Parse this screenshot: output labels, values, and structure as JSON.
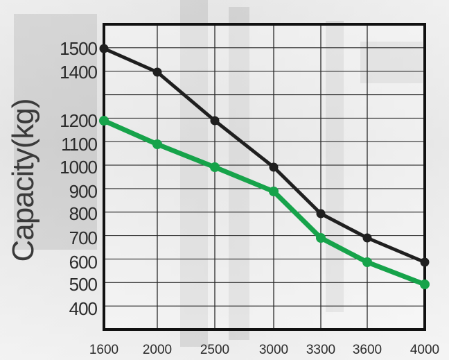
{
  "chart_data": {
    "type": "line",
    "title": "",
    "xlabel": "",
    "ylabel": "Capacity(kg)",
    "x": [
      "1600",
      "2000",
      "2500",
      "3000",
      "3300",
      "3600",
      "4000"
    ],
    "y_ticks": [
      "1500",
      "1400",
      "1200",
      "1100",
      "1000",
      "900",
      "800",
      "700",
      "600",
      "500",
      "400"
    ],
    "series": [
      {
        "values": [
          1500,
          1400,
          1200,
          1000,
          800,
          700,
          600
        ],
        "color": "#1f1f1f"
      },
      {
        "values": [
          1200,
          1100,
          1000,
          900,
          700,
          600,
          500
        ],
        "color": "#16a34a"
      }
    ],
    "grid": true
  }
}
